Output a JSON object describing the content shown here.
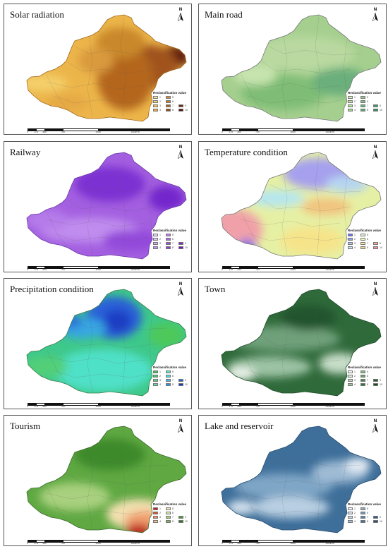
{
  "panels": [
    {
      "id": "solar",
      "title": "Solar radiation",
      "base": "#ecb54a",
      "outline": "#a06a20",
      "blobs": [
        {
          "cx": 243,
          "cy": 74,
          "rx": 20,
          "ry": 15,
          "c": "#5a1508"
        },
        {
          "cx": 205,
          "cy": 88,
          "rx": 42,
          "ry": 30,
          "c": "#a0521a"
        },
        {
          "cx": 172,
          "cy": 105,
          "rx": 40,
          "ry": 45,
          "c": "#b4661e"
        },
        {
          "cx": 165,
          "cy": 55,
          "rx": 35,
          "ry": 22,
          "c": "#c9882c"
        },
        {
          "cx": 130,
          "cy": 80,
          "rx": 25,
          "ry": 18,
          "c": "#d99a3c"
        },
        {
          "cx": 55,
          "cy": 112,
          "rx": 35,
          "ry": 12,
          "c": "#f4cf6a"
        },
        {
          "cx": 90,
          "cy": 140,
          "rx": 30,
          "ry": 12,
          "c": "#e5a944"
        }
      ],
      "legend_colors": [
        "#f9e7a5",
        "#f4d27a",
        "#efbd55",
        "#e9a843",
        "#d8923a",
        "#c27a2e",
        "#a7621f",
        "#8d4c14",
        "#6c2c0d",
        "#4a1106"
      ]
    },
    {
      "id": "road",
      "title": "Main road",
      "base": "#a5cf8e",
      "outline": "#777777",
      "blobs": [
        {
          "cx": 150,
          "cy": 70,
          "rx": 70,
          "ry": 25,
          "c": "#b9d9a0"
        },
        {
          "cx": 120,
          "cy": 125,
          "rx": 60,
          "ry": 25,
          "c": "#7fbd76"
        },
        {
          "cx": 200,
          "cy": 110,
          "rx": 40,
          "ry": 20,
          "c": "#6aaf7c"
        },
        {
          "cx": 80,
          "cy": 100,
          "rx": 30,
          "ry": 15,
          "c": "#c7e4af"
        }
      ],
      "legend_colors": [
        "#d7ecb1",
        "#c3e2a2",
        "#b1dc9a",
        "#9fd394",
        "#8cc98d",
        "#79be86",
        "#66b480",
        "#53a878",
        "#409c70",
        "#2d8e68"
      ]
    },
    {
      "id": "railway",
      "title": "Railway",
      "base": "#a35fe0",
      "outline": "#6a3aa8",
      "blobs": [
        {
          "cx": 150,
          "cy": 60,
          "rx": 50,
          "ry": 25,
          "c": "#7c33d2"
        },
        {
          "cx": 230,
          "cy": 80,
          "rx": 25,
          "ry": 18,
          "c": "#7327cc"
        },
        {
          "cx": 120,
          "cy": 125,
          "rx": 70,
          "ry": 18,
          "c": "#c08cee"
        },
        {
          "cx": 60,
          "cy": 110,
          "rx": 30,
          "ry": 15,
          "c": "#b57be9"
        },
        {
          "cx": 180,
          "cy": 140,
          "rx": 40,
          "ry": 15,
          "c": "#9348da"
        }
      ],
      "legend_colors": [
        "#e8d6f8",
        "#dbc0f5",
        "#cfaaf2",
        "#c294ee",
        "#b57ee9",
        "#a868e3",
        "#9b52dc",
        "#8e3dd4",
        "#8027cb",
        "#7212c2"
      ]
    },
    {
      "id": "temp",
      "title": "Temperature condition",
      "base": "#e6f0a4",
      "outline": "#777777",
      "blobs": [
        {
          "cx": 170,
          "cy": 45,
          "rx": 50,
          "ry": 22,
          "c": "#a6a0ee"
        },
        {
          "cx": 210,
          "cy": 60,
          "rx": 30,
          "ry": 12,
          "c": "#b6d6f0"
        },
        {
          "cx": 110,
          "cy": 80,
          "rx": 40,
          "ry": 12,
          "c": "#b6e6ee"
        },
        {
          "cx": 50,
          "cy": 125,
          "rx": 40,
          "ry": 30,
          "c": "#f0a0a8"
        },
        {
          "cx": 68,
          "cy": 150,
          "rx": 12,
          "ry": 12,
          "c": "#6a6aee"
        },
        {
          "cx": 160,
          "cy": 140,
          "rx": 45,
          "ry": 20,
          "c": "#f6e48a"
        },
        {
          "cx": 180,
          "cy": 92,
          "rx": 35,
          "ry": 12,
          "c": "#f2c37e"
        }
      ],
      "legend_colors": [
        "#6f6ff0",
        "#8f9ff2",
        "#b0c8f2",
        "#c8e8f0",
        "#dff4d4",
        "#eef5b4",
        "#f7ea98",
        "#f5cf8c",
        "#f2b08e",
        "#ee8f98"
      ]
    },
    {
      "id": "precip",
      "title": "Precipitation condition",
      "base": "#3ec88a",
      "outline": "#3a7a4a",
      "blobs": [
        {
          "cx": 155,
          "cy": 55,
          "rx": 40,
          "ry": 30,
          "c": "#2a60d8"
        },
        {
          "cx": 160,
          "cy": 60,
          "rx": 20,
          "ry": 16,
          "c": "#1d3dc4"
        },
        {
          "cx": 110,
          "cy": 70,
          "rx": 35,
          "ry": 15,
          "c": "#38a6e2"
        },
        {
          "cx": 95,
          "cy": 60,
          "rx": 15,
          "ry": 10,
          "c": "#2c72d8"
        },
        {
          "cx": 230,
          "cy": 80,
          "rx": 25,
          "ry": 18,
          "c": "#4ec85a"
        },
        {
          "cx": 140,
          "cy": 130,
          "rx": 70,
          "ry": 30,
          "c": "#4fe0c8"
        },
        {
          "cx": 60,
          "cy": 125,
          "rx": 30,
          "ry": 15,
          "c": "#52cf78"
        }
      ],
      "legend_colors": [
        "#3cbe4a",
        "#4cc860",
        "#5bd17a",
        "#5fdba0",
        "#58e2c4",
        "#4ad8dc",
        "#3bbce6",
        "#2c94e0",
        "#2166d4",
        "#1637c2"
      ]
    },
    {
      "id": "town",
      "title": "Town",
      "base": "#2f6a3a",
      "outline": "#1f4a28",
      "blobs": [
        {
          "cx": 120,
          "cy": 85,
          "rx": 80,
          "ry": 18,
          "c": "#6fa07a"
        },
        {
          "cx": 100,
          "cy": 125,
          "rx": 60,
          "ry": 15,
          "c": "#9cc3a4"
        },
        {
          "cx": 200,
          "cy": 120,
          "rx": 30,
          "ry": 15,
          "c": "#c6ddc8"
        },
        {
          "cx": 155,
          "cy": 55,
          "rx": 40,
          "ry": 18,
          "c": "#22552e"
        },
        {
          "cx": 60,
          "cy": 135,
          "rx": 20,
          "ry": 10,
          "c": "#e8f2e8"
        }
      ],
      "legend_colors": [
        "#f2f8f2",
        "#d8e9d9",
        "#bcd8be",
        "#9fc6a3",
        "#82b387",
        "#669e6c",
        "#4b8854",
        "#35733f",
        "#215e2c",
        "#124a1d"
      ]
    },
    {
      "id": "tourism",
      "title": "Tourism",
      "base": "#5fa842",
      "outline": "#3a6a2a",
      "blobs": [
        {
          "cx": 150,
          "cy": 55,
          "rx": 50,
          "ry": 22,
          "c": "#3c8a2a"
        },
        {
          "cx": 100,
          "cy": 115,
          "rx": 50,
          "ry": 20,
          "c": "#a8d07e"
        },
        {
          "cx": 190,
          "cy": 140,
          "rx": 45,
          "ry": 22,
          "c": "#f2e0b0"
        },
        {
          "cx": 200,
          "cy": 150,
          "rx": 30,
          "ry": 15,
          "c": "#f0a070"
        },
        {
          "cx": 190,
          "cy": 163,
          "rx": 18,
          "ry": 10,
          "c": "#c0281a"
        }
      ],
      "legend_colors": [
        "#c41e14",
        "#e0502a",
        "#f0885a",
        "#f6c28e",
        "#f6e6bc",
        "#d6eaae",
        "#a8d27c",
        "#78b656",
        "#4e9838",
        "#2f7a22"
      ]
    },
    {
      "id": "lake",
      "title": "Lake and reservoir",
      "base": "#3e6f9a",
      "outline": "#2a4a6a",
      "blobs": [
        {
          "cx": 120,
          "cy": 100,
          "rx": 70,
          "ry": 18,
          "c": "#7fa6c6"
        },
        {
          "cx": 130,
          "cy": 130,
          "rx": 55,
          "ry": 15,
          "c": "#b9cfe2"
        },
        {
          "cx": 200,
          "cy": 80,
          "rx": 40,
          "ry": 16,
          "c": "#9fbbd4"
        },
        {
          "cx": 225,
          "cy": 70,
          "rx": 18,
          "ry": 10,
          "c": "#e6eef6"
        },
        {
          "cx": 60,
          "cy": 130,
          "rx": 20,
          "ry": 10,
          "c": "#d4e2ee"
        }
      ],
      "legend_colors": [
        "#eef3f8",
        "#d6e3ee",
        "#bdd1e2",
        "#a3bfd6",
        "#89abc8",
        "#7097ba",
        "#5a85ab",
        "#44719a",
        "#335f88",
        "#254d76"
      ]
    }
  ],
  "legend": {
    "title": "Reclassification value",
    "labels": [
      "1",
      "2",
      "3",
      "4",
      "5",
      "6",
      "7",
      "8",
      "9",
      "10"
    ]
  },
  "north_label": "N",
  "scale": {
    "ticks": [
      "0",
      "175",
      "350",
      "700",
      "1050",
      "1400"
    ],
    "unit": "Km"
  }
}
